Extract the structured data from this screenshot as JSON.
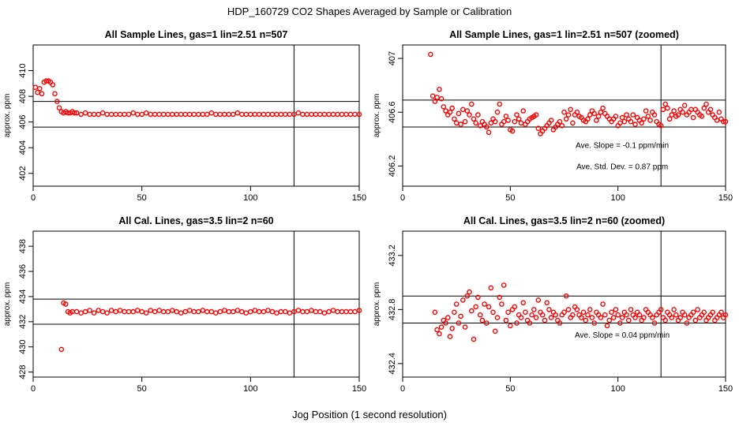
{
  "figure": {
    "title": "HDP_160729  CO2 Shapes Averaged by Sample or Calibration",
    "xlabel": "Jog Position (1 second resolution)"
  },
  "colors": {
    "points": "#ff0000",
    "axes": "#000000",
    "background": "#ffffff"
  },
  "chart_data": [
    {
      "type": "scatter",
      "title": "All Sample Lines, gas=1 lin=2.51 n=507",
      "ylabel": "approx. ppm",
      "xlim": [
        0,
        150
      ],
      "ylim": [
        401,
        412
      ],
      "xticks": [
        0,
        50,
        100,
        150
      ],
      "yticks": [
        402,
        404,
        406,
        408,
        410
      ],
      "hlines": [
        405.6,
        407.6
      ],
      "vline": 120,
      "annotations": [],
      "x": [
        1,
        2,
        3,
        4,
        5,
        6,
        7,
        8,
        9,
        10,
        11,
        12,
        13,
        14,
        15,
        16,
        17,
        18,
        19,
        20,
        22,
        24,
        26,
        28,
        30,
        32,
        34,
        36,
        38,
        40,
        42,
        44,
        46,
        48,
        50,
        52,
        54,
        56,
        58,
        60,
        62,
        64,
        66,
        68,
        70,
        72,
        74,
        76,
        78,
        80,
        82,
        84,
        86,
        88,
        90,
        92,
        94,
        96,
        98,
        100,
        102,
        104,
        106,
        108,
        110,
        112,
        114,
        116,
        118,
        120,
        122,
        124,
        126,
        128,
        130,
        132,
        134,
        136,
        138,
        140,
        142,
        144,
        146,
        148,
        150
      ],
      "y": [
        408.7,
        408.3,
        408.6,
        408.2,
        409.1,
        409.2,
        409.2,
        409.1,
        408.9,
        408.2,
        407.6,
        407.1,
        406.8,
        406.7,
        406.8,
        406.7,
        406.7,
        406.8,
        406.7,
        406.7,
        406.6,
        406.7,
        406.6,
        406.6,
        406.6,
        406.7,
        406.6,
        406.6,
        406.6,
        406.6,
        406.6,
        406.6,
        406.7,
        406.6,
        406.6,
        406.7,
        406.6,
        406.6,
        406.6,
        406.6,
        406.6,
        406.6,
        406.6,
        406.6,
        406.6,
        406.6,
        406.6,
        406.6,
        406.6,
        406.6,
        406.7,
        406.6,
        406.6,
        406.6,
        406.6,
        406.6,
        406.7,
        406.6,
        406.6,
        406.6,
        406.6,
        406.6,
        406.6,
        406.6,
        406.6,
        406.6,
        406.6,
        406.6,
        406.6,
        406.6,
        406.7,
        406.6,
        406.6,
        406.6,
        406.6,
        406.6,
        406.6,
        406.6,
        406.6,
        406.6,
        406.6,
        406.6,
        406.6,
        406.6,
        406.6
      ]
    },
    {
      "type": "scatter",
      "title": "All Sample Lines, gas=1 lin=2.51 n=507 (zoomed)",
      "ylabel": "approx. ppm",
      "xlim": [
        0,
        150
      ],
      "ylim": [
        406.05,
        407.1
      ],
      "xticks": [
        0,
        50,
        100,
        150
      ],
      "yticks": [
        406.2,
        406.6,
        407.0
      ],
      "hlines": [
        406.49,
        406.69
      ],
      "vline": 120,
      "annotations": [
        "Ave. Slope =  -0.1  ppm/min",
        "Ave. Std. Dev. =  0.87  ppm"
      ],
      "x": [
        13,
        14,
        15,
        16,
        17,
        18,
        19,
        20,
        21,
        22,
        23,
        24,
        25,
        26,
        27,
        28,
        29,
        30,
        31,
        32,
        33,
        34,
        35,
        36,
        37,
        38,
        39,
        40,
        41,
        42,
        43,
        44,
        45,
        46,
        47,
        48,
        49,
        50,
        51,
        52,
        53,
        54,
        55,
        56,
        57,
        58,
        59,
        60,
        61,
        62,
        63,
        64,
        65,
        66,
        67,
        68,
        69,
        70,
        71,
        72,
        73,
        74,
        75,
        76,
        77,
        78,
        79,
        80,
        81,
        82,
        83,
        84,
        85,
        86,
        87,
        88,
        89,
        90,
        91,
        92,
        93,
        94,
        95,
        96,
        97,
        98,
        99,
        100,
        101,
        102,
        103,
        104,
        105,
        106,
        107,
        108,
        109,
        110,
        111,
        112,
        113,
        114,
        115,
        116,
        117,
        118,
        119,
        120,
        121,
        122,
        123,
        124,
        125,
        126,
        127,
        128,
        129,
        130,
        131,
        132,
        133,
        134,
        135,
        136,
        137,
        138,
        139,
        140,
        141,
        142,
        143,
        144,
        145,
        146,
        147,
        148,
        149,
        150
      ],
      "y": [
        407.03,
        406.72,
        406.68,
        406.71,
        406.77,
        406.7,
        406.64,
        406.61,
        406.58,
        406.6,
        406.63,
        406.55,
        406.52,
        406.59,
        406.51,
        406.62,
        406.53,
        406.61,
        406.58,
        406.66,
        406.55,
        406.52,
        406.58,
        406.5,
        406.53,
        406.51,
        406.49,
        406.45,
        406.52,
        406.55,
        406.53,
        406.6,
        406.66,
        406.51,
        406.53,
        406.57,
        406.54,
        406.47,
        406.46,
        406.53,
        406.58,
        406.55,
        406.52,
        406.61,
        406.51,
        406.53,
        406.55,
        406.56,
        406.57,
        406.58,
        406.48,
        406.44,
        406.46,
        406.48,
        406.5,
        406.52,
        406.54,
        406.47,
        406.49,
        406.51,
        406.53,
        406.5,
        406.6,
        406.55,
        406.58,
        406.62,
        406.52,
        406.58,
        406.6,
        406.57,
        406.56,
        406.54,
        406.53,
        406.55,
        406.58,
        406.61,
        406.59,
        406.54,
        406.57,
        406.6,
        406.63,
        406.59,
        406.57,
        406.55,
        406.53,
        406.55,
        406.57,
        406.5,
        406.52,
        406.56,
        406.53,
        406.58,
        406.55,
        406.53,
        406.58,
        406.51,
        406.56,
        406.54,
        406.52,
        406.55,
        406.61,
        406.57,
        406.54,
        406.6,
        406.58,
        406.53,
        406.51,
        406.5,
        406.62,
        406.66,
        406.63,
        406.55,
        406.58,
        406.61,
        406.57,
        406.58,
        406.62,
        406.6,
        406.65,
        406.58,
        406.6,
        406.62,
        406.56,
        406.62,
        406.6,
        406.58,
        406.57,
        406.63,
        406.66,
        406.6,
        406.62,
        406.58,
        406.56,
        406.54,
        406.6,
        406.55,
        406.53,
        406.53
      ]
    },
    {
      "type": "scatter",
      "title": "All Cal. Lines, gas=3.5 lin=2 n=60",
      "ylabel": "approx. ppm",
      "xlim": [
        0,
        150
      ],
      "ylim": [
        427.6,
        439.2
      ],
      "xticks": [
        0,
        50,
        100,
        150
      ],
      "yticks": [
        428,
        430,
        432,
        434,
        436,
        438
      ],
      "hlines": [
        431.8,
        433.8
      ],
      "vline": 120,
      "annotations": [],
      "x": [
        13,
        14,
        15,
        16,
        17,
        18,
        20,
        22,
        24,
        26,
        28,
        30,
        32,
        34,
        36,
        38,
        40,
        42,
        44,
        46,
        48,
        50,
        52,
        54,
        56,
        58,
        60,
        62,
        64,
        66,
        68,
        70,
        72,
        74,
        76,
        78,
        80,
        82,
        84,
        86,
        88,
        90,
        92,
        94,
        96,
        98,
        100,
        102,
        104,
        106,
        108,
        110,
        112,
        114,
        116,
        118,
        120,
        122,
        124,
        126,
        128,
        130,
        132,
        134,
        136,
        138,
        140,
        142,
        144,
        146,
        148,
        150
      ],
      "y": [
        429.8,
        433.5,
        433.4,
        432.8,
        432.7,
        432.8,
        432.8,
        432.7,
        432.8,
        432.9,
        432.7,
        432.9,
        432.8,
        432.7,
        432.9,
        432.8,
        432.9,
        432.8,
        432.8,
        432.8,
        432.9,
        432.8,
        432.7,
        432.9,
        432.8,
        432.9,
        432.8,
        432.8,
        432.9,
        432.8,
        432.7,
        432.8,
        432.9,
        432.8,
        432.8,
        432.9,
        432.8,
        432.8,
        432.7,
        432.8,
        432.9,
        432.8,
        432.8,
        432.9,
        432.8,
        432.7,
        432.8,
        432.9,
        432.8,
        432.8,
        432.9,
        432.8,
        432.7,
        432.8,
        432.8,
        432.7,
        432.8,
        432.9,
        432.8,
        432.8,
        432.9,
        432.8,
        432.8,
        432.7,
        432.8,
        432.9,
        432.8,
        432.8,
        432.8,
        432.8,
        432.8,
        432.9
      ]
    },
    {
      "type": "scatter",
      "title": "All Cal. Lines, gas=3.5 lin=2 n=60 (zoomed)",
      "ylabel": "approx. ppm",
      "xlim": [
        0,
        150
      ],
      "ylim": [
        432.3,
        433.38
      ],
      "xticks": [
        0,
        50,
        100,
        150
      ],
      "yticks": [
        432.4,
        432.8,
        433.2
      ],
      "hlines": [
        432.7,
        432.9
      ],
      "vline": 120,
      "annotations": [
        "Ave. Slope =  0.04  ppm/min"
      ],
      "x": [
        15,
        16,
        17,
        18,
        19,
        20,
        21,
        22,
        23,
        24,
        25,
        26,
        27,
        28,
        29,
        30,
        31,
        32,
        33,
        34,
        35,
        36,
        37,
        38,
        39,
        40,
        41,
        42,
        43,
        44,
        45,
        46,
        47,
        48,
        49,
        50,
        51,
        52,
        53,
        54,
        55,
        56,
        57,
        58,
        59,
        60,
        61,
        62,
        63,
        64,
        65,
        66,
        67,
        68,
        69,
        70,
        71,
        72,
        73,
        74,
        75,
        76,
        77,
        78,
        79,
        80,
        81,
        82,
        83,
        84,
        85,
        86,
        87,
        88,
        89,
        90,
        91,
        92,
        93,
        94,
        95,
        96,
        97,
        98,
        99,
        100,
        101,
        102,
        103,
        104,
        105,
        106,
        107,
        108,
        109,
        110,
        111,
        112,
        113,
        114,
        115,
        116,
        117,
        118,
        119,
        120,
        121,
        122,
        123,
        124,
        125,
        126,
        127,
        128,
        129,
        130,
        131,
        132,
        133,
        134,
        135,
        136,
        137,
        138,
        139,
        140,
        141,
        142,
        143,
        144,
        145,
        146,
        147,
        148,
        149,
        150
      ],
      "y": [
        432.78,
        432.65,
        432.62,
        432.67,
        432.72,
        432.7,
        432.74,
        432.6,
        432.66,
        432.78,
        432.84,
        432.7,
        432.75,
        432.87,
        432.67,
        432.9,
        432.93,
        432.79,
        432.58,
        432.82,
        432.89,
        432.76,
        432.72,
        432.84,
        432.7,
        432.82,
        432.96,
        432.78,
        432.64,
        432.74,
        432.89,
        432.84,
        432.98,
        432.72,
        432.78,
        432.68,
        432.8,
        432.82,
        432.7,
        432.76,
        432.74,
        432.85,
        432.78,
        432.72,
        432.7,
        432.76,
        432.8,
        432.74,
        432.87,
        432.78,
        432.76,
        432.72,
        432.85,
        432.8,
        432.74,
        432.78,
        432.76,
        432.72,
        432.7,
        432.76,
        432.78,
        432.9,
        432.8,
        432.74,
        432.76,
        432.82,
        432.8,
        432.76,
        432.74,
        432.78,
        432.72,
        432.76,
        432.8,
        432.74,
        432.7,
        432.78,
        432.76,
        432.74,
        432.84,
        432.76,
        432.68,
        432.72,
        432.78,
        432.74,
        432.8,
        432.76,
        432.7,
        432.74,
        432.78,
        432.76,
        432.72,
        432.8,
        432.76,
        432.74,
        432.78,
        432.76,
        432.72,
        432.74,
        432.8,
        432.78,
        432.76,
        432.74,
        432.7,
        432.76,
        432.78,
        432.8,
        432.74,
        432.72,
        432.78,
        432.76,
        432.74,
        432.8,
        432.76,
        432.72,
        432.74,
        432.78,
        432.76,
        432.7,
        432.74,
        432.76,
        432.78,
        432.72,
        432.8,
        432.74,
        432.76,
        432.78,
        432.72,
        432.74,
        432.76,
        432.78,
        432.72,
        432.74,
        432.76,
        432.78,
        432.74,
        432.76
      ]
    }
  ]
}
